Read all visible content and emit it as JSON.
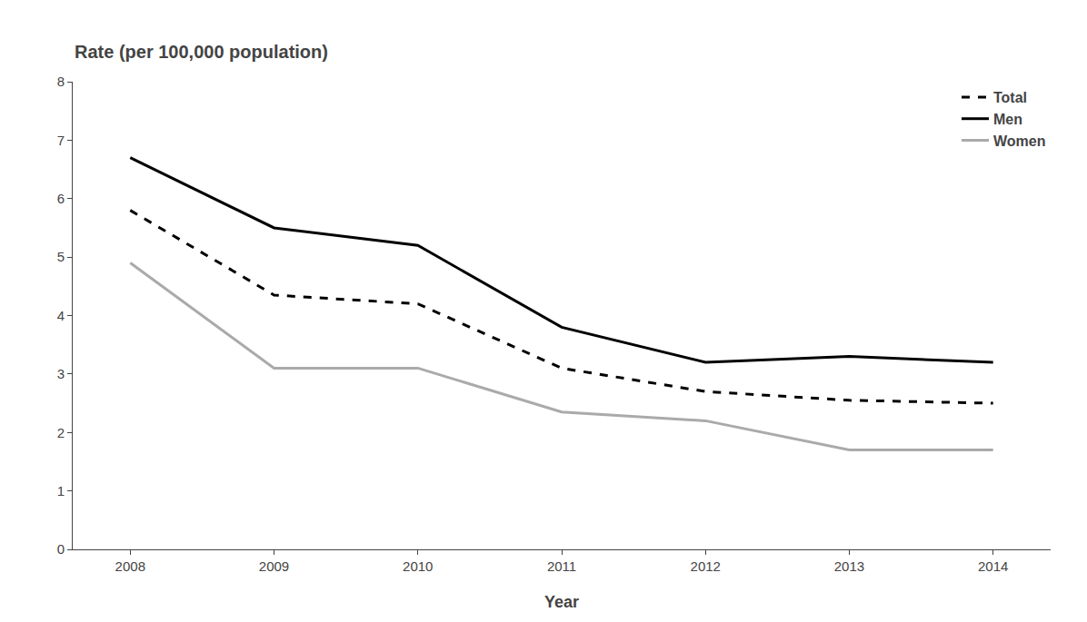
{
  "chart_data": {
    "type": "line",
    "xlabel": "Year",
    "ylabel": "Rate (per 100,000 population)",
    "x": [
      2008,
      2009,
      2010,
      2011,
      2012,
      2013,
      2014
    ],
    "series": [
      {
        "name": "Total",
        "color": "#000000",
        "line_style": "dashed",
        "values": [
          5.8,
          4.35,
          4.2,
          3.1,
          2.7,
          2.55,
          2.5
        ]
      },
      {
        "name": "Men",
        "color": "#000000",
        "line_style": "solid",
        "values": [
          6.7,
          5.5,
          5.2,
          3.8,
          3.2,
          3.3,
          3.2
        ]
      },
      {
        "name": "Women",
        "color": "#aaaaaa",
        "line_style": "solid",
        "values": [
          4.9,
          3.1,
          3.1,
          2.35,
          2.2,
          1.7,
          1.7
        ]
      }
    ],
    "xlim": [
      2007.6,
      2014.4
    ],
    "xticks": [
      2008,
      2009,
      2010,
      2011,
      2012,
      2013,
      2014
    ],
    "ylim": [
      0,
      8
    ],
    "yticks": [
      0,
      1,
      2,
      3,
      4,
      5,
      6,
      7,
      8
    ],
    "grid": false,
    "legend": "upper right"
  }
}
